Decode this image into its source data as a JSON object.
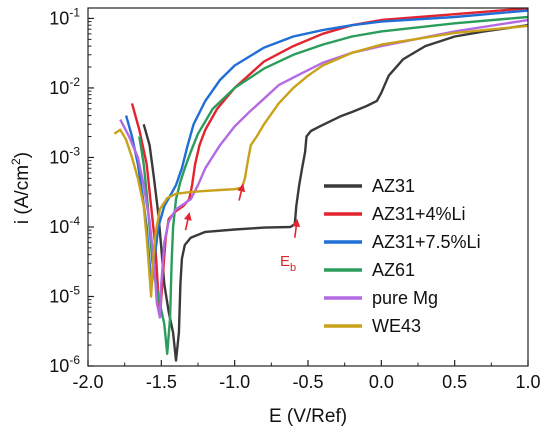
{
  "chart_data": {
    "type": "line",
    "xlabel": "E (V/Ref)",
    "ylabel_main": "i (A/cm",
    "ylabel_sup": "2",
    "ylabel_close": ")",
    "xlim": [
      -2.0,
      1.0
    ],
    "ylim_log10": [
      -6,
      -0.85
    ],
    "y_scale": "log",
    "x_ticks": [
      -2.0,
      -1.5,
      -1.0,
      -0.5,
      0.0,
      0.5,
      1.0
    ],
    "x_tick_labels": [
      "-2.0",
      "-1.5",
      "-1.0",
      "-0.5",
      "0.0",
      "0.5",
      "1.0"
    ],
    "y_ticks_exp": [
      -6,
      -5,
      -4,
      -3,
      -2,
      -1
    ],
    "y_tick_base": "10",
    "y_tick_exps": [
      "-6",
      "-5",
      "-4",
      "-3",
      "-2",
      "-1"
    ],
    "grid": false,
    "legend_position": "bottom-right",
    "annotation": {
      "main": "E",
      "sub": "b",
      "color": "#d62728"
    },
    "arrows_color": "#e3232d",
    "series": [
      {
        "name": "AZ31",
        "color": "#3a3a3a",
        "points": [
          [
            -1.62,
            0.003
          ],
          [
            -1.58,
            0.0015
          ],
          [
            -1.55,
            0.0005
          ],
          [
            -1.52,
            0.00015
          ],
          [
            -1.5,
            5e-05
          ],
          [
            -1.48,
            1.5e-05
          ],
          [
            -1.45,
            6e-06
          ],
          [
            -1.42,
            3e-06
          ],
          [
            -1.4,
            1.2e-06
          ],
          [
            -1.38,
            3e-06
          ],
          [
            -1.37,
            1.5e-05
          ],
          [
            -1.36,
            3.5e-05
          ],
          [
            -1.34,
            5.5e-05
          ],
          [
            -1.3,
            7e-05
          ],
          [
            -1.2,
            8.5e-05
          ],
          [
            -1.0,
            9.2e-05
          ],
          [
            -0.8,
            9.8e-05
          ],
          [
            -0.62,
            0.0001
          ],
          [
            -0.59,
            0.00011
          ],
          [
            -0.58,
            0.0002
          ],
          [
            -0.56,
            0.0004
          ],
          [
            -0.54,
            0.0007
          ],
          [
            -0.52,
            0.0012
          ],
          [
            -0.51,
            0.002
          ],
          [
            -0.48,
            0.0024
          ],
          [
            -0.42,
            0.0028
          ],
          [
            -0.35,
            0.0033
          ],
          [
            -0.28,
            0.0039
          ],
          [
            -0.2,
            0.0045
          ],
          [
            -0.1,
            0.0055
          ],
          [
            -0.03,
            0.0065
          ],
          [
            0.0,
            0.0085
          ],
          [
            0.05,
            0.015
          ],
          [
            0.15,
            0.026
          ],
          [
            0.3,
            0.04
          ],
          [
            0.5,
            0.055
          ],
          [
            0.7,
            0.065
          ],
          [
            1.0,
            0.08
          ]
        ]
      },
      {
        "name": "AZ31+4%Li",
        "color": "#e3232d",
        "points": [
          [
            -1.7,
            0.006
          ],
          [
            -1.65,
            0.0025
          ],
          [
            -1.6,
            0.0008
          ],
          [
            -1.57,
            0.0002
          ],
          [
            -1.54,
            5e-05
          ],
          [
            -1.52,
            1e-05
          ],
          [
            -1.51,
            5e-06
          ],
          [
            -1.49,
            2e-05
          ],
          [
            -1.47,
            7e-05
          ],
          [
            -1.45,
            0.00013
          ],
          [
            -1.4,
            0.00017
          ],
          [
            -1.35,
            0.0002
          ],
          [
            -1.31,
            0.00025
          ],
          [
            -1.29,
            0.0004
          ],
          [
            -1.27,
            0.0008
          ],
          [
            -1.24,
            0.0015
          ],
          [
            -1.2,
            0.0025
          ],
          [
            -1.12,
            0.005
          ],
          [
            -1.0,
            0.01
          ],
          [
            -0.8,
            0.024
          ],
          [
            -0.6,
            0.04
          ],
          [
            -0.4,
            0.06
          ],
          [
            -0.2,
            0.08
          ],
          [
            0.0,
            0.095
          ],
          [
            0.5,
            0.115
          ],
          [
            1.0,
            0.14
          ]
        ]
      },
      {
        "name": "AZ31+7.5%Li",
        "color": "#1f6fd6",
        "points": [
          [
            -1.74,
            0.004
          ],
          [
            -1.7,
            0.002
          ],
          [
            -1.66,
            0.0008
          ],
          [
            -1.63,
            0.0003
          ],
          [
            -1.6,
            0.0001
          ],
          [
            -1.58,
            3e-05
          ],
          [
            -1.57,
            1.2e-05
          ],
          [
            -1.55,
            3e-05
          ],
          [
            -1.52,
            0.0001
          ],
          [
            -1.48,
            0.0002
          ],
          [
            -1.44,
            0.00028
          ],
          [
            -1.4,
            0.0004
          ],
          [
            -1.36,
            0.0007
          ],
          [
            -1.32,
            0.0015
          ],
          [
            -1.28,
            0.003
          ],
          [
            -1.2,
            0.0065
          ],
          [
            -1.1,
            0.013
          ],
          [
            -1.0,
            0.021
          ],
          [
            -0.8,
            0.038
          ],
          [
            -0.6,
            0.055
          ],
          [
            -0.4,
            0.068
          ],
          [
            -0.2,
            0.08
          ],
          [
            0.0,
            0.09
          ],
          [
            0.5,
            0.105
          ],
          [
            1.0,
            0.13
          ]
        ]
      },
      {
        "name": "AZ61",
        "color": "#2a9d5c",
        "points": [
          [
            -1.65,
            0.002
          ],
          [
            -1.62,
            0.0008
          ],
          [
            -1.6,
            0.0003
          ],
          [
            -1.58,
            0.0001
          ],
          [
            -1.56,
            3e-05
          ],
          [
            -1.52,
            1e-05
          ],
          [
            -1.48,
            4e-06
          ],
          [
            -1.46,
            1.5e-06
          ],
          [
            -1.44,
            5e-06
          ],
          [
            -1.43,
            3e-05
          ],
          [
            -1.42,
            0.0001
          ],
          [
            -1.4,
            0.00025
          ],
          [
            -1.37,
            0.00045
          ],
          [
            -1.34,
            0.0007
          ],
          [
            -1.3,
            0.0012
          ],
          [
            -1.25,
            0.0022
          ],
          [
            -1.15,
            0.005
          ],
          [
            -1.0,
            0.01
          ],
          [
            -0.8,
            0.019
          ],
          [
            -0.6,
            0.03
          ],
          [
            -0.4,
            0.042
          ],
          [
            -0.2,
            0.055
          ],
          [
            0.0,
            0.065
          ],
          [
            0.5,
            0.085
          ],
          [
            1.0,
            0.105
          ]
        ]
      },
      {
        "name": "pure Mg",
        "color": "#b36ae2",
        "points": [
          [
            -1.78,
            0.0035
          ],
          [
            -1.72,
            0.002
          ],
          [
            -1.66,
            0.001
          ],
          [
            -1.62,
            0.0004
          ],
          [
            -1.58,
            0.00012
          ],
          [
            -1.55,
            3e-05
          ],
          [
            -1.53,
            8e-06
          ],
          [
            -1.51,
            5e-06
          ],
          [
            -1.5,
            1.5e-05
          ],
          [
            -1.48,
            6e-05
          ],
          [
            -1.45,
            0.00012
          ],
          [
            -1.4,
            0.00018
          ],
          [
            -1.3,
            0.00025
          ],
          [
            -1.25,
            0.0004
          ],
          [
            -1.2,
            0.0007
          ],
          [
            -1.1,
            0.0015
          ],
          [
            -1.0,
            0.0028
          ],
          [
            -0.9,
            0.0045
          ],
          [
            -0.8,
            0.007
          ],
          [
            -0.7,
            0.011
          ],
          [
            -0.55,
            0.016
          ],
          [
            -0.4,
            0.023
          ],
          [
            -0.2,
            0.032
          ],
          [
            0.0,
            0.04
          ],
          [
            0.5,
            0.065
          ],
          [
            1.0,
            0.095
          ]
        ]
      },
      {
        "name": "WE43",
        "color": "#c9a21a",
        "points": [
          [
            -1.82,
            0.0022
          ],
          [
            -1.78,
            0.0025
          ],
          [
            -1.74,
            0.0018
          ],
          [
            -1.7,
            0.001
          ],
          [
            -1.66,
            0.0005
          ],
          [
            -1.62,
            0.0002
          ],
          [
            -1.6,
            7e-05
          ],
          [
            -1.58,
            2e-05
          ],
          [
            -1.57,
            1e-05
          ],
          [
            -1.56,
            2.5e-05
          ],
          [
            -1.54,
            8e-05
          ],
          [
            -1.51,
            0.00018
          ],
          [
            -1.46,
            0.00026
          ],
          [
            -1.4,
            0.0003
          ],
          [
            -1.3,
            0.00032
          ],
          [
            -1.2,
            0.00033
          ],
          [
            -1.1,
            0.00034
          ],
          [
            -1.0,
            0.00035
          ],
          [
            -0.95,
            0.00037
          ],
          [
            -0.93,
            0.0005
          ],
          [
            -0.91,
            0.0009
          ],
          [
            -0.89,
            0.0015
          ],
          [
            -0.85,
            0.002
          ],
          [
            -0.8,
            0.003
          ],
          [
            -0.7,
            0.006
          ],
          [
            -0.6,
            0.01
          ],
          [
            -0.5,
            0.015
          ],
          [
            -0.4,
            0.021
          ],
          [
            -0.2,
            0.032
          ],
          [
            0.0,
            0.042
          ],
          [
            0.5,
            0.062
          ],
          [
            1.0,
            0.078
          ]
        ]
      }
    ]
  }
}
